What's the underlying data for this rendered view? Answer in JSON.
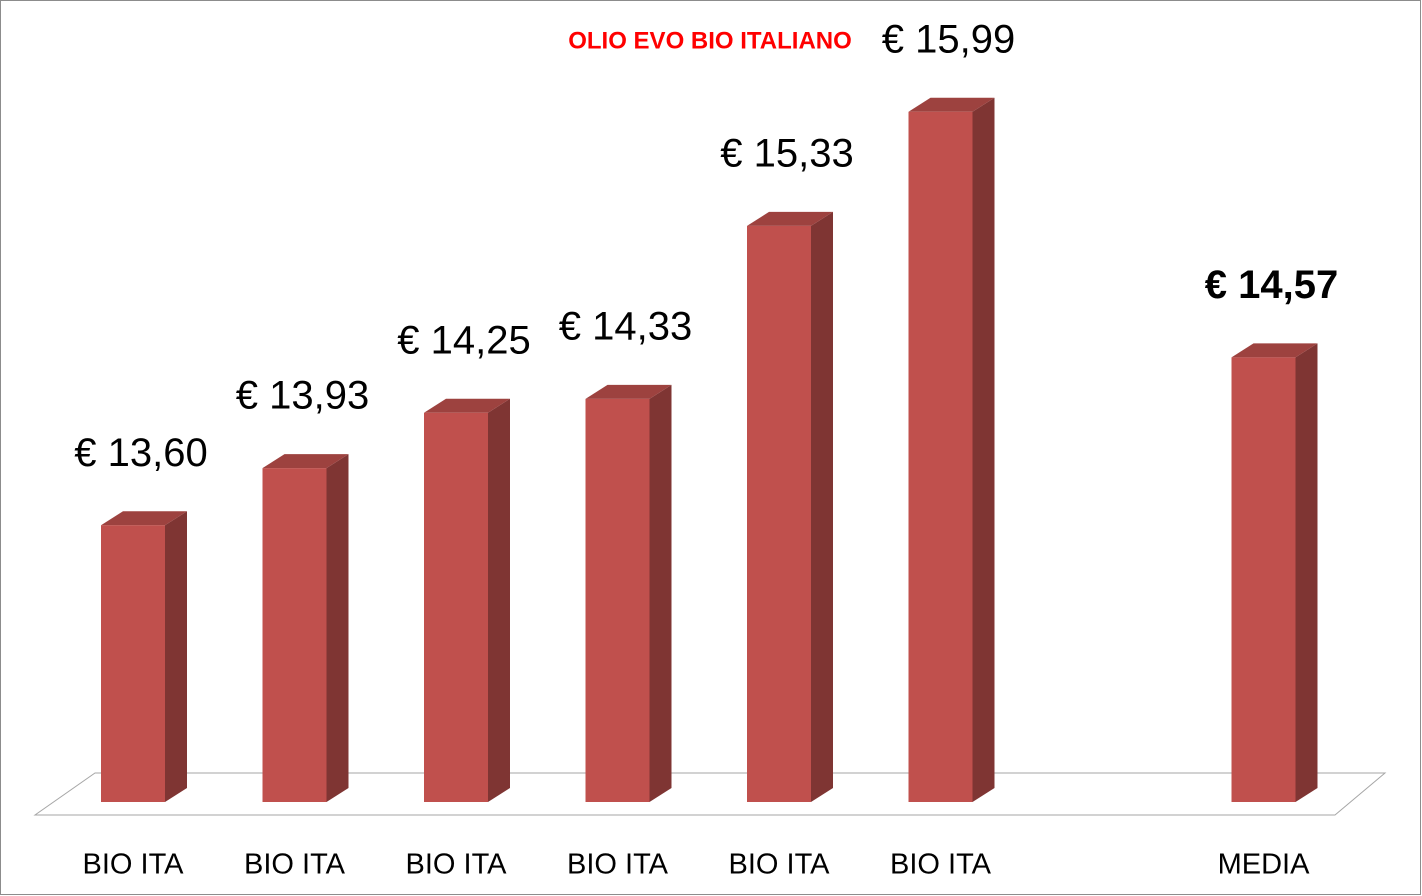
{
  "chart_data": {
    "type": "bar3d",
    "title": "OLIO EVO BIO ITALIANO",
    "categories": [
      "BIO ITA",
      "BIO ITA",
      "BIO ITA",
      "BIO ITA",
      "BIO ITA",
      "BIO ITA",
      null,
      "MEDIA"
    ],
    "values": [
      13.6,
      13.93,
      14.25,
      14.33,
      15.33,
      15.99,
      null,
      14.57
    ],
    "value_labels": [
      "€ 13,60",
      "€ 13,93",
      "€ 14,25",
      "€ 14,33",
      "€ 15,33",
      "€ 15,99",
      null,
      "€ 14,57"
    ],
    "color": "#c0504d",
    "ylim": [
      12,
      16
    ]
  }
}
